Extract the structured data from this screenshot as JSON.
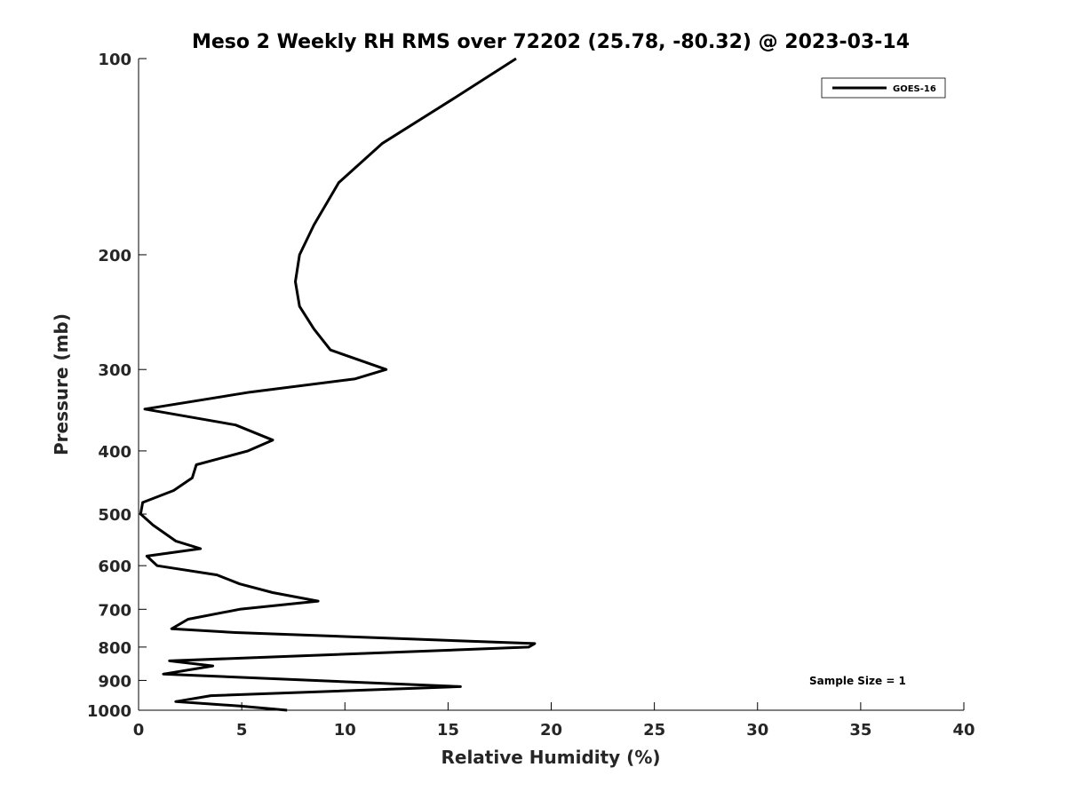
{
  "chart_data": {
    "type": "line",
    "title": "Meso 2 Weekly RH RMS over 72202 (25.78, -80.32) @ 2023-03-14",
    "xlabel": "Relative Humidity (%)",
    "ylabel": "Pressure (mb)",
    "xlim": [
      0,
      40
    ],
    "ylim": [
      1000,
      100
    ],
    "yscale": "log",
    "xticks": [
      0,
      5,
      10,
      15,
      20,
      25,
      30,
      35,
      40
    ],
    "yticks": [
      100,
      200,
      300,
      400,
      500,
      600,
      700,
      800,
      900,
      1000
    ],
    "grid": false,
    "legend": {
      "placement": "top-right",
      "entries": [
        "GOES-16"
      ]
    },
    "annotation": "Sample Size = 1",
    "series": [
      {
        "name": "GOES-16",
        "color": "#000000",
        "points": [
          [
            18.3,
            100
          ],
          [
            15.3,
            115
          ],
          [
            11.8,
            135
          ],
          [
            9.7,
            155
          ],
          [
            8.5,
            180
          ],
          [
            7.8,
            200
          ],
          [
            7.6,
            220
          ],
          [
            7.8,
            240
          ],
          [
            8.5,
            260
          ],
          [
            9.3,
            280
          ],
          [
            12.0,
            300
          ],
          [
            10.5,
            310
          ],
          [
            5.4,
            325
          ],
          [
            0.3,
            345
          ],
          [
            4.7,
            365
          ],
          [
            6.5,
            385
          ],
          [
            5.3,
            400
          ],
          [
            2.8,
            420
          ],
          [
            2.6,
            440
          ],
          [
            1.7,
            460
          ],
          [
            0.2,
            480
          ],
          [
            0.1,
            500
          ],
          [
            0.7,
            520
          ],
          [
            1.8,
            550
          ],
          [
            3.0,
            565
          ],
          [
            0.4,
            580
          ],
          [
            0.9,
            600
          ],
          [
            3.8,
            620
          ],
          [
            4.9,
            640
          ],
          [
            6.5,
            660
          ],
          [
            8.7,
            680
          ],
          [
            4.9,
            700
          ],
          [
            2.4,
            725
          ],
          [
            1.6,
            750
          ],
          [
            4.7,
            760
          ],
          [
            19.2,
            790
          ],
          [
            18.9,
            800
          ],
          [
            1.5,
            840
          ],
          [
            3.6,
            855
          ],
          [
            1.2,
            880
          ],
          [
            15.6,
            920
          ],
          [
            3.5,
            950
          ],
          [
            1.8,
            970
          ],
          [
            4.9,
            985
          ],
          [
            7.2,
            1000
          ]
        ]
      }
    ]
  }
}
